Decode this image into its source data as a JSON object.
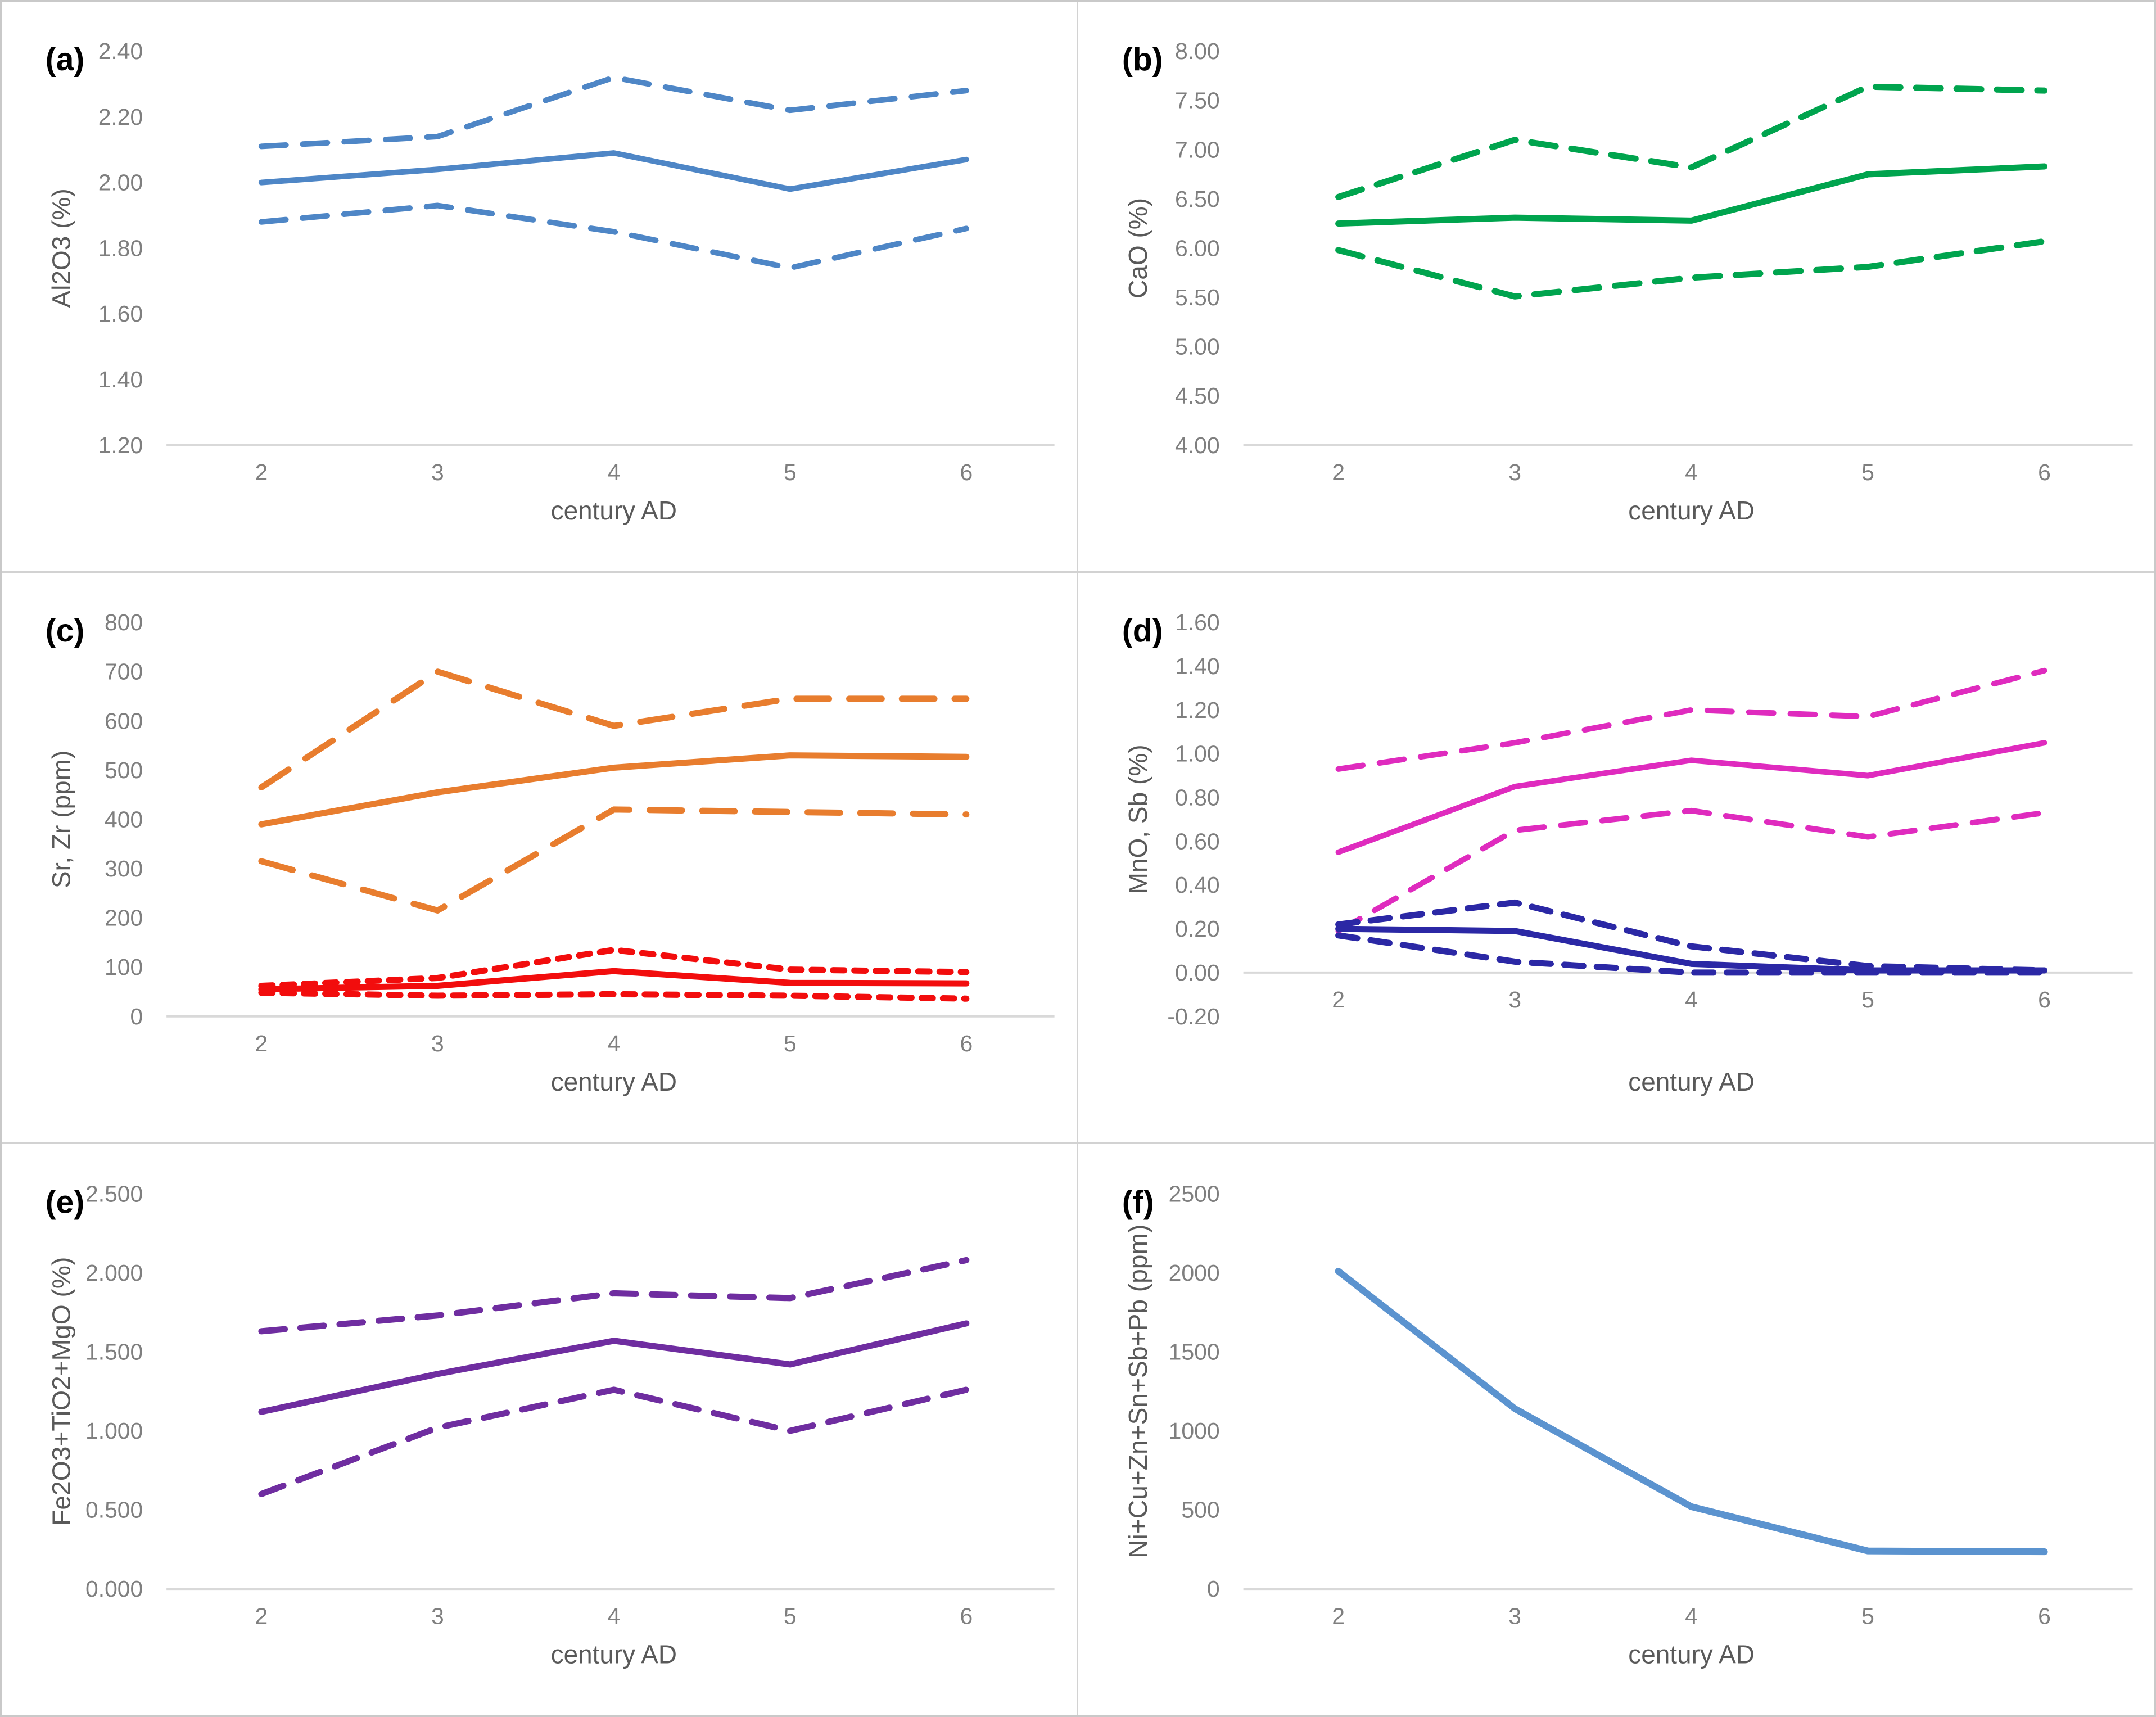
{
  "figure": {
    "background": "#ffffff",
    "outer_border_color": "#c9c9c9",
    "divider_color": "#d2d2d2",
    "axis_line_color": "#d9d9d9",
    "tick_label_color": "#7f7f7f",
    "axis_title_color": "#595959",
    "panel_label_color": "#000000"
  },
  "chart_data": [
    {
      "id": "a",
      "panel_label": "(a)",
      "type": "line",
      "title": "",
      "xlabel": "century AD",
      "ylabel": "Al2O3 (%)",
      "x": [
        2,
        3,
        4,
        5,
        6
      ],
      "xticks": [
        "2",
        "3",
        "4",
        "5",
        "6"
      ],
      "ylim": [
        1.2,
        2.4
      ],
      "axis_cross": 1.2,
      "yticks": [
        "2.40",
        "2.20",
        "2.00",
        "1.80",
        "1.60",
        "1.40",
        "1.20"
      ],
      "grid": false,
      "legend": "none",
      "series": [
        {
          "name": "Al2O3 mean",
          "color": "#4e86c6",
          "dash": null,
          "width": 10,
          "values": [
            2.0,
            2.04,
            2.09,
            1.98,
            2.07
          ]
        },
        {
          "name": "Al2O3 upper bound",
          "color": "#4e86c6",
          "dash": "44 30",
          "width": 10,
          "values": [
            2.11,
            2.14,
            2.32,
            2.22,
            2.28
          ]
        },
        {
          "name": "Al2O3 lower bound",
          "color": "#4e86c6",
          "dash": "44 30",
          "width": 10,
          "values": [
            1.88,
            1.93,
            1.85,
            1.74,
            1.86
          ]
        }
      ]
    },
    {
      "id": "b",
      "panel_label": "(b)",
      "type": "line",
      "title": "",
      "xlabel": "century AD",
      "ylabel": "CaO (%)",
      "x": [
        2,
        3,
        4,
        5,
        6
      ],
      "xticks": [
        "2",
        "3",
        "4",
        "5",
        "6"
      ],
      "ylim": [
        4.0,
        8.0
      ],
      "axis_cross": 4.0,
      "yticks": [
        "8.00",
        "7.50",
        "7.00",
        "6.50",
        "6.00",
        "5.50",
        "5.00",
        "4.50",
        "4.00"
      ],
      "grid": false,
      "legend": "none",
      "series": [
        {
          "name": "CaO mean",
          "color": "#00a44e",
          "dash": null,
          "width": 11,
          "values": [
            6.25,
            6.31,
            6.28,
            6.75,
            6.83
          ]
        },
        {
          "name": "CaO upper bound",
          "color": "#00a44e",
          "dash": "44 28",
          "width": 11,
          "values": [
            6.52,
            7.1,
            6.82,
            7.64,
            7.6
          ]
        },
        {
          "name": "CaO lower bound",
          "color": "#00a44e",
          "dash": "44 28",
          "width": 11,
          "values": [
            5.98,
            5.51,
            5.7,
            5.81,
            6.07
          ]
        }
      ]
    },
    {
      "id": "c",
      "panel_label": "(c)",
      "type": "line",
      "title": "",
      "xlabel": "century AD",
      "ylabel": "Sr, Zr (ppm)",
      "x": [
        2,
        3,
        4,
        5,
        6
      ],
      "xticks": [
        "2",
        "3",
        "4",
        "5",
        "6"
      ],
      "ylim": [
        0,
        800
      ],
      "axis_cross": 0,
      "yticks": [
        "800",
        "700",
        "600",
        "500",
        "400",
        "300",
        "200",
        "100",
        "0"
      ],
      "grid": false,
      "legend": "none",
      "series": [
        {
          "name": "Sr mean",
          "color": "#e87d2e",
          "dash": null,
          "width": 11,
          "values": [
            390,
            455,
            505,
            530,
            527
          ]
        },
        {
          "name": "Sr upper bound",
          "color": "#e87d2e",
          "dash": "58 36",
          "width": 11,
          "values": [
            465,
            700,
            590,
            645,
            645
          ]
        },
        {
          "name": "Sr lower bound",
          "color": "#e87d2e",
          "dash": "58 36",
          "width": 11,
          "values": [
            315,
            215,
            420,
            415,
            410
          ]
        },
        {
          "name": "Zr mean",
          "color": "#f20d0d",
          "dash": null,
          "width": 11,
          "values": [
            55,
            62,
            92,
            68,
            67
          ]
        },
        {
          "name": "Zr upper bound",
          "color": "#f20d0d",
          "dash": "20 18",
          "width": 11,
          "values": [
            62,
            78,
            135,
            95,
            90
          ]
        },
        {
          "name": "Zr lower bound",
          "color": "#f20d0d",
          "dash": "20 18",
          "width": 11,
          "values": [
            48,
            42,
            45,
            42,
            36
          ]
        }
      ]
    },
    {
      "id": "d",
      "panel_label": "(d)",
      "type": "line",
      "title": "",
      "xlabel": "century AD",
      "ylabel": "MnO, Sb (%)",
      "x": [
        2,
        3,
        4,
        5,
        6
      ],
      "xticks": [
        "2",
        "3",
        "4",
        "5",
        "6"
      ],
      "ylim": [
        -0.2,
        1.6
      ],
      "axis_cross": 0.0,
      "yticks": [
        "1.60",
        "1.40",
        "1.20",
        "1.00",
        "0.80",
        "0.60",
        "0.40",
        "0.20",
        "0.00",
        "-0.20"
      ],
      "grid": false,
      "legend": "none",
      "series": [
        {
          "name": "MnO mean",
          "color": "#df2bbe",
          "dash": null,
          "width": 10,
          "values": [
            0.55,
            0.85,
            0.97,
            0.9,
            1.05
          ]
        },
        {
          "name": "MnO upper bound",
          "color": "#df2bbe",
          "dash": "44 30",
          "width": 10,
          "values": [
            0.93,
            1.05,
            1.2,
            1.17,
            1.38
          ]
        },
        {
          "name": "MnO lower bound",
          "color": "#df2bbe",
          "dash": "44 30",
          "width": 10,
          "values": [
            0.19,
            0.65,
            0.74,
            0.62,
            0.73
          ]
        },
        {
          "name": "Sb mean",
          "color": "#2b28a5",
          "dash": null,
          "width": 11,
          "values": [
            0.2,
            0.19,
            0.04,
            0.01,
            0.01
          ]
        },
        {
          "name": "Sb upper bound",
          "color": "#2b28a5",
          "dash": "34 24",
          "width": 11,
          "values": [
            0.22,
            0.32,
            0.12,
            0.03,
            0.01
          ]
        },
        {
          "name": "Sb lower bound",
          "color": "#2b28a5",
          "dash": "34 24",
          "width": 11,
          "values": [
            0.17,
            0.05,
            0.0,
            0.0,
            0.0
          ]
        }
      ]
    },
    {
      "id": "e",
      "panel_label": "(e)",
      "type": "line",
      "title": "",
      "xlabel": "century AD",
      "ylabel": "Fe2O3+TiO2+MgO (%)",
      "x": [
        2,
        3,
        4,
        5,
        6
      ],
      "xticks": [
        "2",
        "3",
        "4",
        "5",
        "6"
      ],
      "ylim": [
        0.0,
        2.5
      ],
      "axis_cross": 0.0,
      "yticks": [
        "2.500",
        "2.000",
        "1.500",
        "1.000",
        "0.500",
        "0.000"
      ],
      "grid": false,
      "legend": "none",
      "series": [
        {
          "name": "Fe2O3+TiO2+MgO mean",
          "color": "#6f2da0",
          "dash": null,
          "width": 11,
          "values": [
            1.12,
            1.36,
            1.57,
            1.42,
            1.68
          ]
        },
        {
          "name": "Fe2O3+TiO2+MgO upper bound",
          "color": "#6f2da0",
          "dash": "42 28",
          "width": 11,
          "values": [
            1.63,
            1.73,
            1.87,
            1.84,
            2.08
          ]
        },
        {
          "name": "Fe2O3+TiO2+MgO lower bound",
          "color": "#6f2da0",
          "dash": "42 28",
          "width": 11,
          "values": [
            0.6,
            1.02,
            1.26,
            1.0,
            1.26
          ]
        }
      ]
    },
    {
      "id": "f",
      "panel_label": "(f)",
      "type": "line",
      "title": "",
      "xlabel": "century AD",
      "ylabel": "Ni+Cu+Zn+Sn+Sb+Pb (ppm)",
      "x": [
        2,
        3,
        4,
        5,
        6
      ],
      "xticks": [
        "2",
        "3",
        "4",
        "5",
        "6"
      ],
      "ylim": [
        0,
        2500
      ],
      "axis_cross": 0,
      "yticks": [
        "2500",
        "2000",
        "1500",
        "1000",
        "500",
        "0"
      ],
      "grid": false,
      "legend": "none",
      "series": [
        {
          "name": "Ni+Cu+Zn+Sn+Sb+Pb mean",
          "color": "#5b93cf",
          "dash": null,
          "width": 12,
          "values": [
            2010,
            1140,
            520,
            240,
            235
          ]
        }
      ]
    }
  ]
}
